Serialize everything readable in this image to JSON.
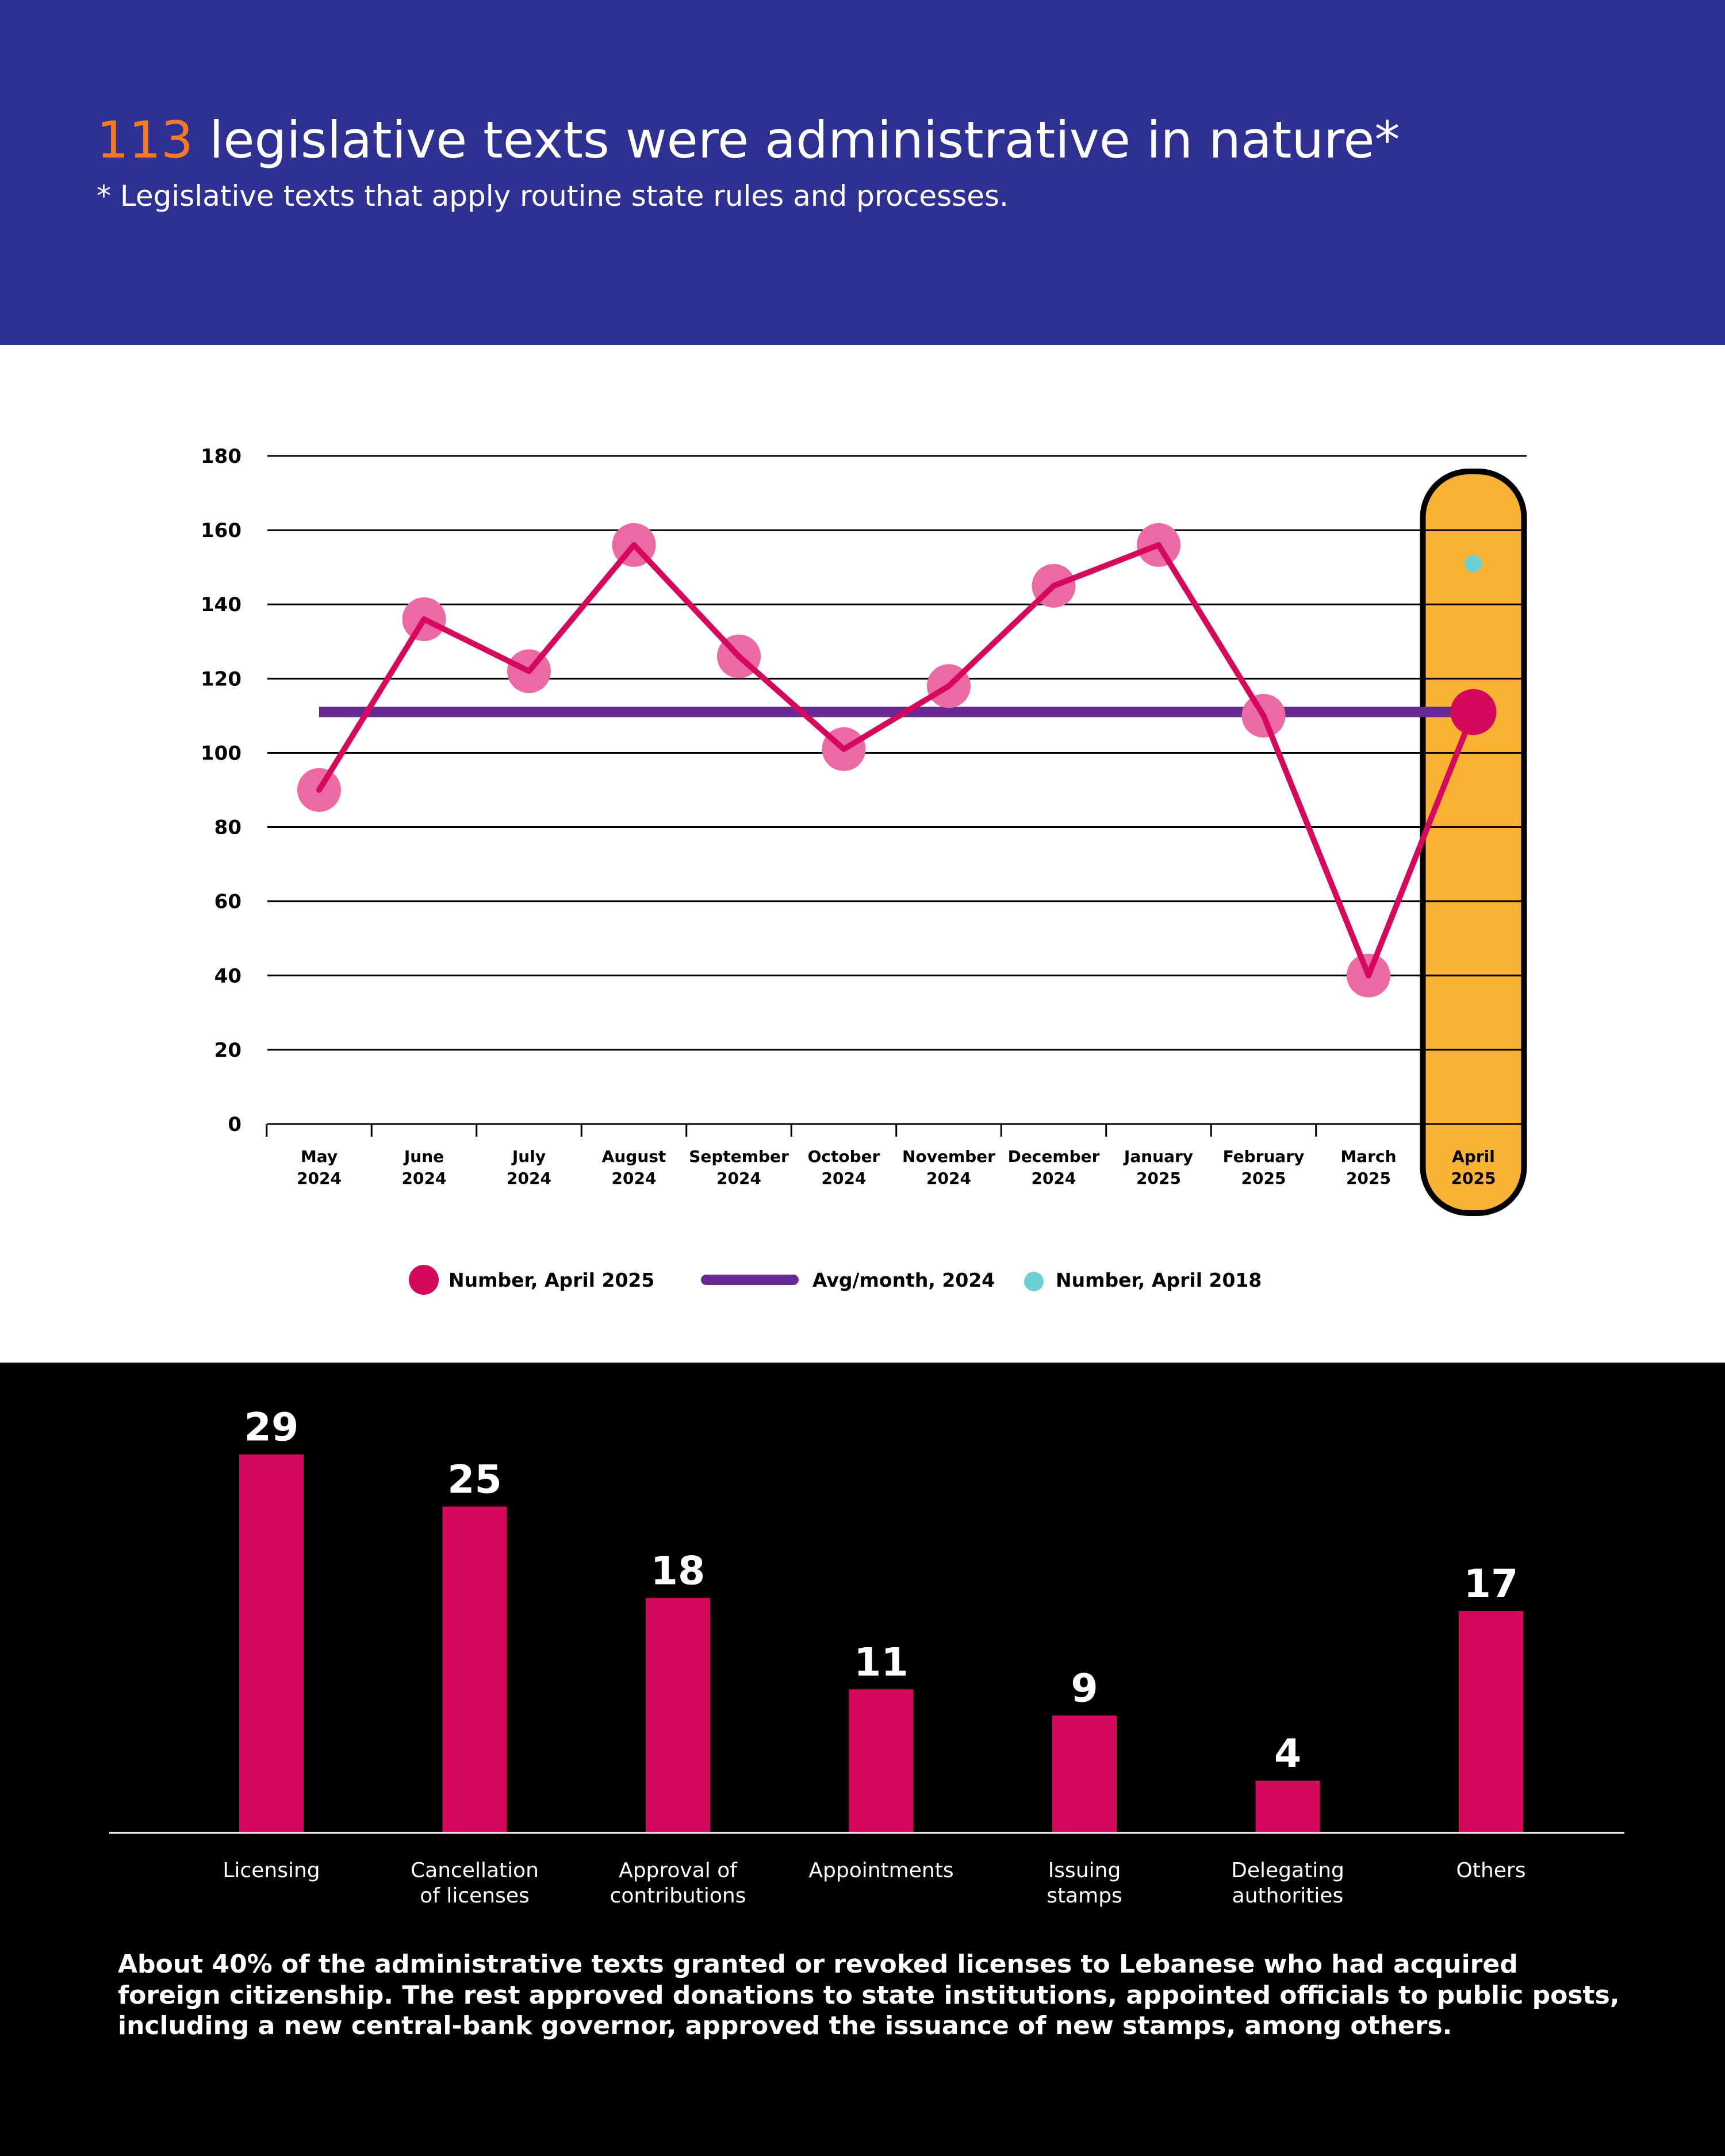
{
  "header": {
    "title_number": "113",
    "title_rest": " legislative texts were administrative in nature*",
    "subtitle": "* Legislative texts that apply routine state rules and processes."
  },
  "colors": {
    "header_bg": "#2e3192",
    "accent_orange": "#f47b20",
    "line": "#d6085b",
    "marker": "#ec6aa3",
    "avg_line": "#672a94",
    "april_2018": "#6ccfd4",
    "highlight": "#f9b233",
    "bar": "#d6085b"
  },
  "chart_data": [
    {
      "type": "line",
      "categories": [
        [
          "May",
          "2024"
        ],
        [
          "June",
          "2024"
        ],
        [
          "July",
          "2024"
        ],
        [
          "August",
          "2024"
        ],
        [
          "September",
          "2024"
        ],
        [
          "October",
          "2024"
        ],
        [
          "November",
          "2024"
        ],
        [
          "December",
          "2024"
        ],
        [
          "January",
          "2025"
        ],
        [
          "February",
          "2025"
        ],
        [
          "March",
          "2025"
        ],
        [
          "April",
          "2025"
        ]
      ],
      "series": [
        {
          "name": "Number, April 2025",
          "values": [
            90,
            136,
            122,
            156,
            126,
            101,
            118,
            145,
            156,
            110,
            40,
            111
          ]
        }
      ],
      "reference_line": {
        "name": "Avg/month, 2024",
        "value": 111
      },
      "extra_point": {
        "name": "Number, April 2018",
        "category_index": 11,
        "value": 151
      },
      "highlighted_category": 11,
      "ylim": [
        0,
        180
      ],
      "yticks": [
        0,
        20,
        40,
        60,
        80,
        100,
        120,
        140,
        160,
        180
      ],
      "grid": true,
      "legend": "bottom"
    },
    {
      "type": "bar",
      "categories": [
        [
          "Licensing"
        ],
        [
          "Cancellation",
          "of licenses"
        ],
        [
          "Approval of",
          "contributions"
        ],
        [
          "Appointments"
        ],
        [
          "Issuing",
          "stamps"
        ],
        [
          "Delegating",
          "authorities"
        ],
        [
          "Others"
        ]
      ],
      "values": [
        29,
        25,
        18,
        11,
        9,
        4,
        17
      ]
    }
  ],
  "caption": "About 40% of the administrative texts granted or revoked licenses to Lebanese who had acquired foreign citizenship. The rest approved donations to state institutions, appointed officials to public posts, including a new central-bank governor, approved the issuance of new stamps, among others."
}
